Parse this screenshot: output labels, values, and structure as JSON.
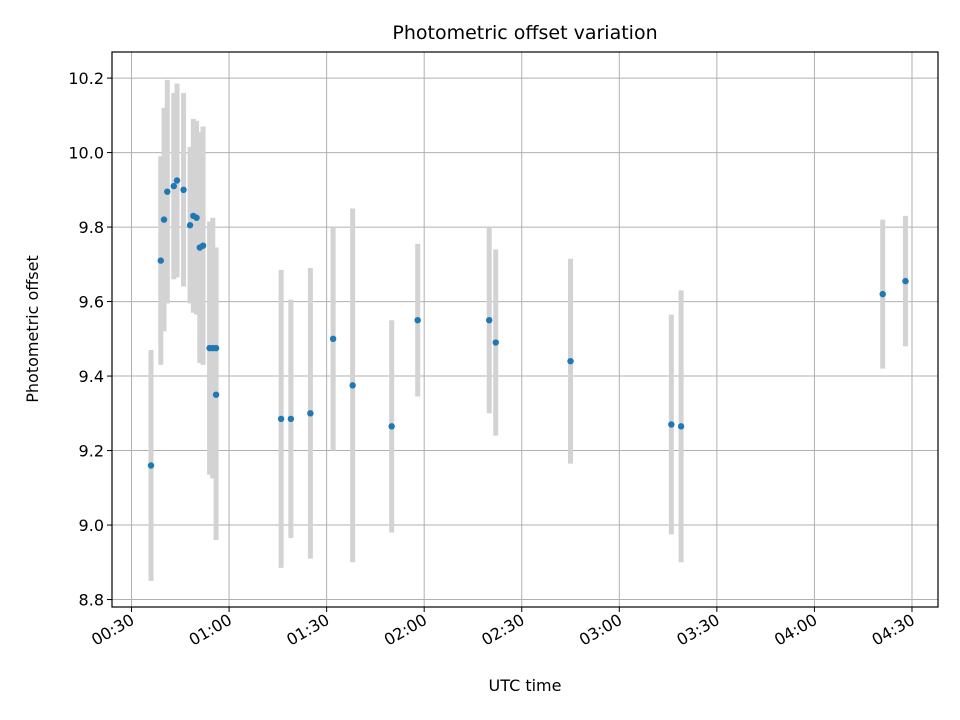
{
  "chart_data": {
    "type": "scatter",
    "title": "Photometric offset variation",
    "xlabel": "UTC time",
    "ylabel": "Photometric offset",
    "x_ticks": [
      "00:30",
      "01:00",
      "01:30",
      "02:00",
      "02:30",
      "03:00",
      "03:30",
      "04:00",
      "04:30"
    ],
    "y_ticks": [
      "8.8",
      "9.0",
      "9.2",
      "9.4",
      "9.6",
      "9.8",
      "10.0",
      "10.2"
    ],
    "xlim": [
      "00:24",
      "04:38"
    ],
    "ylim": [
      8.78,
      10.27
    ],
    "grid": true,
    "point_color": "#1f77b4",
    "errorbar_color": "#d3d3d3",
    "points": [
      {
        "x": "00:36",
        "y": 9.16,
        "yerr": 0.31
      },
      {
        "x": "00:39",
        "y": 9.71,
        "yerr": 0.28
      },
      {
        "x": "00:40",
        "y": 9.82,
        "yerr": 0.3
      },
      {
        "x": "00:41",
        "y": 9.895,
        "yerr": 0.3
      },
      {
        "x": "00:43",
        "y": 9.91,
        "yerr": 0.25
      },
      {
        "x": "00:44",
        "y": 9.925,
        "yerr": 0.26
      },
      {
        "x": "00:46",
        "y": 9.9,
        "yerr": 0.26
      },
      {
        "x": "00:48",
        "y": 9.805,
        "yerr": 0.21
      },
      {
        "x": "00:49",
        "y": 9.83,
        "yerr": 0.26
      },
      {
        "x": "00:50",
        "y": 9.825,
        "yerr": 0.26
      },
      {
        "x": "00:51",
        "y": 9.745,
        "yerr": 0.31
      },
      {
        "x": "00:52",
        "y": 9.75,
        "yerr": 0.32
      },
      {
        "x": "00:54",
        "y": 9.475,
        "yerr": 0.34
      },
      {
        "x": "00:55",
        "y": 9.475,
        "yerr": 0.35
      },
      {
        "x": "00:56",
        "y": 9.475,
        "yerr": 0.27
      },
      {
        "x": "00:56",
        "y": 9.35,
        "yerr": 0.39
      },
      {
        "x": "01:16",
        "y": 9.285,
        "yerr": 0.4
      },
      {
        "x": "01:19",
        "y": 9.285,
        "yerr": 0.32
      },
      {
        "x": "01:25",
        "y": 9.3,
        "yerr": 0.39
      },
      {
        "x": "01:32",
        "y": 9.5,
        "yerr": 0.3
      },
      {
        "x": "01:38",
        "y": 9.375,
        "yerr": 0.475
      },
      {
        "x": "01:50",
        "y": 9.265,
        "yerr": 0.285
      },
      {
        "x": "01:58",
        "y": 9.55,
        "yerr": 0.205
      },
      {
        "x": "02:20",
        "y": 9.55,
        "yerr": 0.25
      },
      {
        "x": "02:22",
        "y": 9.49,
        "yerr": 0.25
      },
      {
        "x": "02:45",
        "y": 9.44,
        "yerr": 0.275
      },
      {
        "x": "03:16",
        "y": 9.27,
        "yerr": 0.295
      },
      {
        "x": "03:19",
        "y": 9.265,
        "yerr": 0.365
      },
      {
        "x": "04:21",
        "y": 9.62,
        "yerr": 0.2
      },
      {
        "x": "04:28",
        "y": 9.655,
        "yerr": 0.175
      }
    ]
  }
}
